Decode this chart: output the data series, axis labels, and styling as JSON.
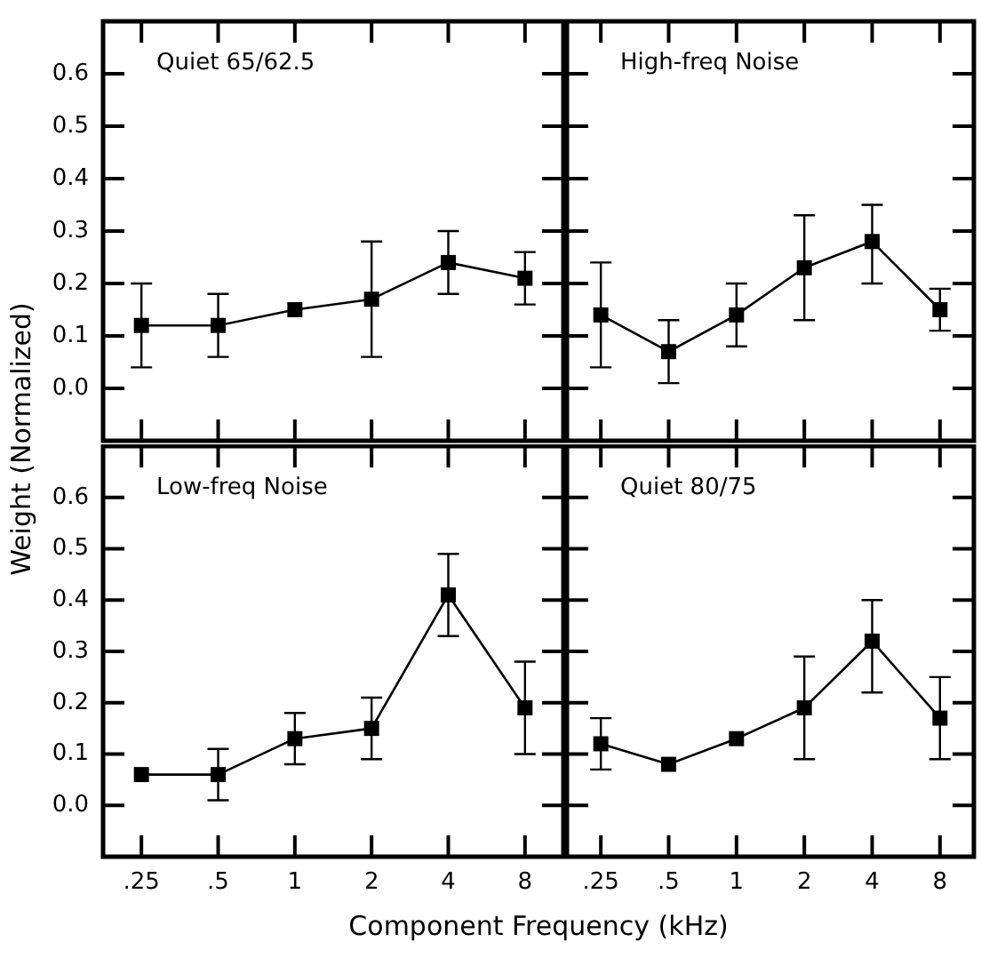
{
  "chart_data": [
    {
      "type": "line",
      "title": "Quiet 65/62.5",
      "categories": [
        ".25",
        ".5",
        "1",
        "2",
        "4",
        "8"
      ],
      "tick_labels": "y",
      "marker": "square",
      "line_style": "solid",
      "grid": false,
      "ylim": [
        -0.1,
        0.7
      ],
      "yticks": [
        {
          "value": 0,
          "label": "0.0"
        },
        0.1,
        0.2,
        0.3,
        0.4,
        0.5,
        0.6
      ],
      "series": [
        {
          "color": "#000000",
          "values": [
            0.12,
            0.12,
            0.15,
            0.17,
            0.24,
            0.21
          ],
          "errors": [
            [
              0.04,
              0.2
            ],
            [
              0.06,
              0.18
            ],
            null,
            [
              0.06,
              0.28
            ],
            [
              0.18,
              0.3
            ],
            [
              0.16,
              0.26
            ]
          ]
        }
      ]
    },
    {
      "type": "line",
      "title": "High-freq Noise",
      "categories": [
        ".25",
        ".5",
        "1",
        "2",
        "4",
        "8"
      ],
      "tick_labels": false,
      "marker": "square",
      "line_style": "solid",
      "grid": false,
      "ylim": [
        -0.1,
        0.7
      ],
      "yticks": [
        0,
        0.1,
        0.2,
        0.3,
        0.4,
        0.5,
        0.6
      ],
      "series": [
        {
          "color": "#000000",
          "values": [
            0.14,
            0.07,
            0.14,
            0.23,
            0.28,
            0.15
          ],
          "errors": [
            [
              0.04,
              0.24
            ],
            [
              0.01,
              0.13
            ],
            [
              0.08,
              0.2
            ],
            [
              0.13,
              0.33
            ],
            [
              0.2,
              0.35
            ],
            [
              0.11,
              0.19
            ]
          ]
        }
      ]
    },
    {
      "type": "line",
      "title": "Low-freq Noise",
      "xlabel": "Component Frequency (kHz)",
      "ylabel": "Weight (Normalized)",
      "categories": [
        ".25",
        ".5",
        "1",
        "2",
        "4",
        "8"
      ],
      "marker": "square",
      "line_style": "solid",
      "grid": false,
      "ylim": [
        -0.1,
        0.7
      ],
      "yticks": [
        {
          "value": 0,
          "label": "0.0"
        },
        0.1,
        0.2,
        0.3,
        0.4,
        0.5,
        0.6
      ],
      "series": [
        {
          "color": "#000000",
          "values": [
            0.06,
            0.06,
            0.13,
            0.15,
            0.41,
            0.19
          ],
          "errors": [
            null,
            [
              0.01,
              0.11
            ],
            [
              0.08,
              0.18
            ],
            [
              0.09,
              0.21
            ],
            [
              0.33,
              0.49
            ],
            [
              0.1,
              0.28
            ]
          ]
        }
      ]
    },
    {
      "type": "line",
      "title": "Quiet 80/75",
      "categories": [
        ".25",
        ".5",
        "1",
        "2",
        "4",
        "8"
      ],
      "tick_labels": "x",
      "marker": "square",
      "line_style": "solid",
      "grid": false,
      "ylim": [
        -0.1,
        0.7
      ],
      "yticks": [
        0,
        0.1,
        0.2,
        0.3,
        0.4,
        0.5,
        0.6
      ],
      "series": [
        {
          "color": "#000000",
          "values": [
            0.12,
            0.08,
            0.13,
            0.19,
            0.32,
            0.17
          ],
          "errors": [
            [
              0.07,
              0.17
            ],
            null,
            null,
            [
              0.09,
              0.29
            ],
            [
              0.22,
              0.4
            ],
            [
              0.09,
              0.25
            ]
          ]
        }
      ]
    }
  ]
}
